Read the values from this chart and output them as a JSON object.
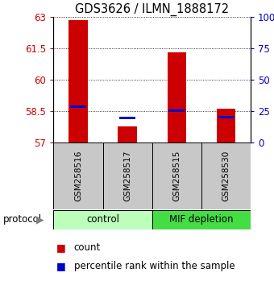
{
  "title": "GDS3626 / ILMN_1888172",
  "samples": [
    "GSM258516",
    "GSM258517",
    "GSM258515",
    "GSM258530"
  ],
  "red_bar_tops": [
    62.85,
    57.78,
    61.3,
    58.62
  ],
  "red_bar_bottom": 57.0,
  "blue_marker_values": [
    58.72,
    58.18,
    58.52,
    58.22
  ],
  "ylim_left": [
    57,
    63
  ],
  "yticks_left": [
    57,
    58.5,
    60,
    61.5,
    63
  ],
  "yticks_right": [
    0,
    25,
    50,
    75,
    100
  ],
  "ytick_labels_left": [
    "57",
    "58.5",
    "60",
    "61.5",
    "63"
  ],
  "ytick_labels_right": [
    "0",
    "25",
    "50",
    "75",
    "100%"
  ],
  "left_tick_color": "#cc0000",
  "right_tick_color": "#0000cc",
  "bar_color": "#cc0000",
  "marker_color": "#0000cc",
  "groups": [
    {
      "label": "control",
      "indices": [
        0,
        1
      ],
      "color": "#bbffbb"
    },
    {
      "label": "MIF depletion",
      "indices": [
        2,
        3
      ],
      "color": "#44dd44"
    }
  ],
  "protocol_label": "protocol",
  "legend_count_label": "count",
  "legend_percentile_label": "percentile rank within the sample",
  "sample_box_color": "#c8c8c8",
  "fig_width": 3.4,
  "fig_height": 3.54,
  "dpi": 100
}
